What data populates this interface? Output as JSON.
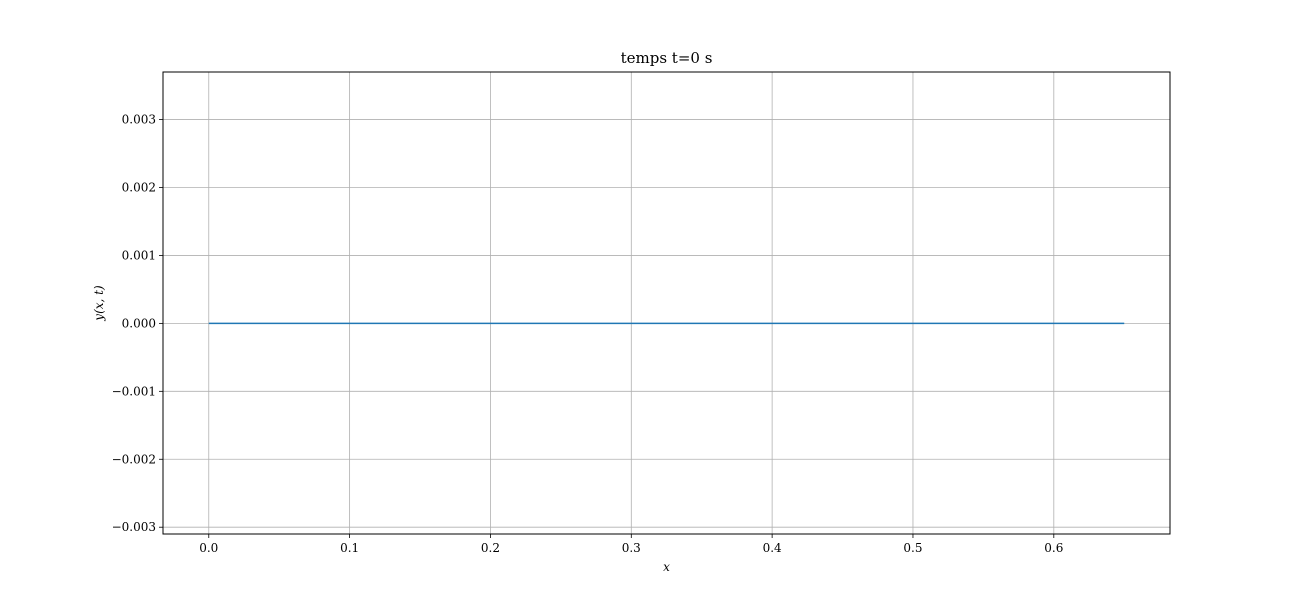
{
  "chart_data": {
    "type": "line",
    "title": "temps t=0 s",
    "xlabel": "x",
    "ylabel": "y(x, t)",
    "xlim": [
      -0.0325,
      0.6825
    ],
    "ylim": [
      -0.0031,
      0.0037
    ],
    "grid": true,
    "x_ticks": [
      {
        "value": 0.0,
        "label": "0.0"
      },
      {
        "value": 0.1,
        "label": "0.1"
      },
      {
        "value": 0.2,
        "label": "0.2"
      },
      {
        "value": 0.3,
        "label": "0.3"
      },
      {
        "value": 0.4,
        "label": "0.4"
      },
      {
        "value": 0.5,
        "label": "0.5"
      },
      {
        "value": 0.6,
        "label": "0.6"
      }
    ],
    "y_ticks": [
      {
        "value": -0.003,
        "label": "−0.003"
      },
      {
        "value": -0.002,
        "label": "−0.002"
      },
      {
        "value": -0.001,
        "label": "−0.001"
      },
      {
        "value": 0.0,
        "label": "0.000"
      },
      {
        "value": 0.001,
        "label": "0.001"
      },
      {
        "value": 0.002,
        "label": "0.002"
      },
      {
        "value": 0.003,
        "label": "0.003"
      }
    ],
    "series": [
      {
        "color": "#1f77b4",
        "x": [
          0.0,
          0.65
        ],
        "y": [
          0.0,
          0.0
        ]
      }
    ]
  }
}
